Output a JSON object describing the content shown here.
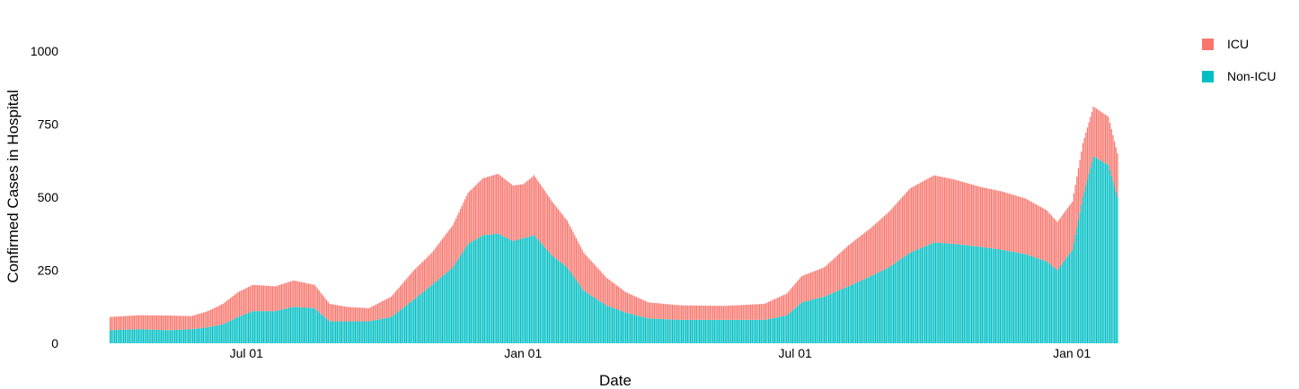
{
  "chart_data": {
    "type": "bar",
    "stacked": true,
    "xlabel": "Date",
    "ylabel": "Confirmed Cases in Hospital",
    "ylim": [
      0,
      1000
    ],
    "yticks": [
      0,
      250,
      500,
      750,
      1000
    ],
    "x_start": "2020-04-01",
    "x_end": "2022-01-31",
    "xticks": [
      {
        "date": "2020-07-01",
        "label": "Jul 01"
      },
      {
        "date": "2021-01-01",
        "label": "Jan 01"
      },
      {
        "date": "2021-07-01",
        "label": "Jul 01"
      },
      {
        "date": "2022-01-01",
        "label": "Jan 01"
      }
    ],
    "legend_position": "top-right",
    "series": [
      {
        "name": "ICU",
        "color": "#F8766D",
        "points": [
          [
            "2020-04-01",
            45
          ],
          [
            "2020-04-20",
            48
          ],
          [
            "2020-05-10",
            50
          ],
          [
            "2020-05-25",
            45
          ],
          [
            "2020-06-05",
            55
          ],
          [
            "2020-06-15",
            70
          ],
          [
            "2020-06-25",
            85
          ],
          [
            "2020-07-05",
            90
          ],
          [
            "2020-07-20",
            85
          ],
          [
            "2020-08-01",
            90
          ],
          [
            "2020-08-15",
            80
          ],
          [
            "2020-08-25",
            60
          ],
          [
            "2020-09-05",
            50
          ],
          [
            "2020-09-20",
            45
          ],
          [
            "2020-10-05",
            70
          ],
          [
            "2020-10-20",
            100
          ],
          [
            "2020-11-01",
            110
          ],
          [
            "2020-11-15",
            145
          ],
          [
            "2020-11-25",
            175
          ],
          [
            "2020-12-05",
            195
          ],
          [
            "2020-12-15",
            205
          ],
          [
            "2020-12-25",
            190
          ],
          [
            "2021-01-01",
            185
          ],
          [
            "2021-01-08",
            205
          ],
          [
            "2021-01-20",
            185
          ],
          [
            "2021-01-30",
            160
          ],
          [
            "2021-02-10",
            130
          ],
          [
            "2021-02-25",
            95
          ],
          [
            "2021-03-10",
            70
          ],
          [
            "2021-03-25",
            55
          ],
          [
            "2021-04-15",
            50
          ],
          [
            "2021-05-15",
            48
          ],
          [
            "2021-06-10",
            55
          ],
          [
            "2021-06-25",
            75
          ],
          [
            "2021-07-05",
            90
          ],
          [
            "2021-07-20",
            100
          ],
          [
            "2021-08-05",
            140
          ],
          [
            "2021-08-20",
            165
          ],
          [
            "2021-09-01",
            190
          ],
          [
            "2021-09-15",
            220
          ],
          [
            "2021-10-01",
            230
          ],
          [
            "2021-10-15",
            220
          ],
          [
            "2021-11-01",
            205
          ],
          [
            "2021-11-15",
            200
          ],
          [
            "2021-12-01",
            190
          ],
          [
            "2021-12-15",
            175
          ],
          [
            "2021-12-22",
            165
          ],
          [
            "2022-01-01",
            165
          ],
          [
            "2022-01-08",
            185
          ],
          [
            "2022-01-15",
            170
          ],
          [
            "2022-01-25",
            165
          ],
          [
            "2022-01-31",
            150
          ]
        ]
      },
      {
        "name": "Non-ICU",
        "color": "#00BFC4",
        "points": [
          [
            "2020-04-01",
            45
          ],
          [
            "2020-04-20",
            48
          ],
          [
            "2020-05-10",
            45
          ],
          [
            "2020-05-25",
            48
          ],
          [
            "2020-06-05",
            55
          ],
          [
            "2020-06-15",
            65
          ],
          [
            "2020-06-25",
            90
          ],
          [
            "2020-07-05",
            110
          ],
          [
            "2020-07-20",
            110
          ],
          [
            "2020-08-01",
            125
          ],
          [
            "2020-08-15",
            120
          ],
          [
            "2020-08-25",
            75
          ],
          [
            "2020-09-05",
            75
          ],
          [
            "2020-09-20",
            75
          ],
          [
            "2020-10-05",
            90
          ],
          [
            "2020-10-20",
            150
          ],
          [
            "2020-11-01",
            200
          ],
          [
            "2020-11-15",
            260
          ],
          [
            "2020-11-25",
            340
          ],
          [
            "2020-12-05",
            370
          ],
          [
            "2020-12-15",
            375
          ],
          [
            "2020-12-25",
            350
          ],
          [
            "2021-01-01",
            360
          ],
          [
            "2021-01-08",
            370
          ],
          [
            "2021-01-20",
            300
          ],
          [
            "2021-01-30",
            260
          ],
          [
            "2021-02-10",
            180
          ],
          [
            "2021-02-25",
            130
          ],
          [
            "2021-03-10",
            105
          ],
          [
            "2021-03-25",
            85
          ],
          [
            "2021-04-15",
            80
          ],
          [
            "2021-05-15",
            80
          ],
          [
            "2021-06-10",
            80
          ],
          [
            "2021-06-25",
            95
          ],
          [
            "2021-07-05",
            140
          ],
          [
            "2021-07-20",
            160
          ],
          [
            "2021-08-05",
            195
          ],
          [
            "2021-08-20",
            230
          ],
          [
            "2021-09-01",
            260
          ],
          [
            "2021-09-15",
            310
          ],
          [
            "2021-10-01",
            345
          ],
          [
            "2021-10-15",
            340
          ],
          [
            "2021-11-01",
            330
          ],
          [
            "2021-11-15",
            320
          ],
          [
            "2021-12-01",
            305
          ],
          [
            "2021-12-15",
            280
          ],
          [
            "2021-12-22",
            250
          ],
          [
            "2022-01-01",
            320
          ],
          [
            "2022-01-08",
            500
          ],
          [
            "2022-01-15",
            640
          ],
          [
            "2022-01-25",
            610
          ],
          [
            "2022-01-31",
            500
          ]
        ]
      }
    ]
  }
}
